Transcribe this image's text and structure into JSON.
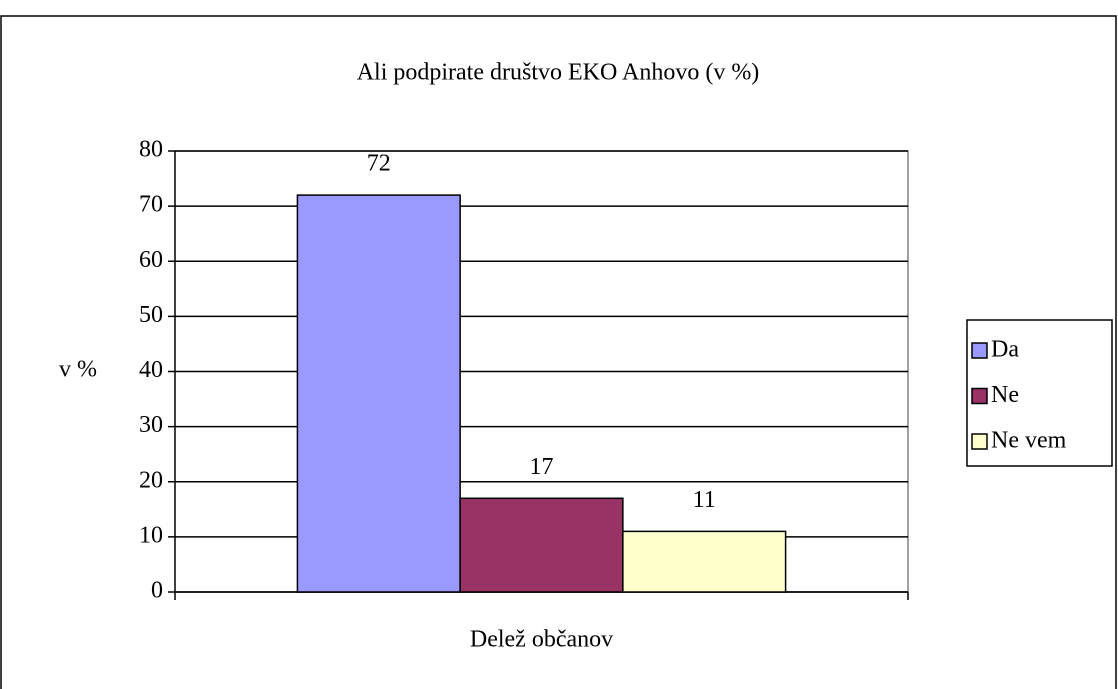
{
  "chart_data": {
    "type": "bar",
    "title": "Ali podpirate društvo EKO Anhovo (v %)",
    "y_label": "v %",
    "categories": [
      "Delež občanov"
    ],
    "series": [
      {
        "name": "Da",
        "color": "#9999ff",
        "values": [
          72
        ]
      },
      {
        "name": "Ne",
        "color": "#993366",
        "values": [
          17
        ]
      },
      {
        "name": "Ne vem",
        "color": "#ffffcc",
        "values": [
          11
        ]
      }
    ],
    "ylim": [
      0,
      80
    ],
    "yticks": [
      0,
      10,
      20,
      30,
      40,
      50,
      60,
      70,
      80
    ],
    "grid": true,
    "legend": "right"
  }
}
